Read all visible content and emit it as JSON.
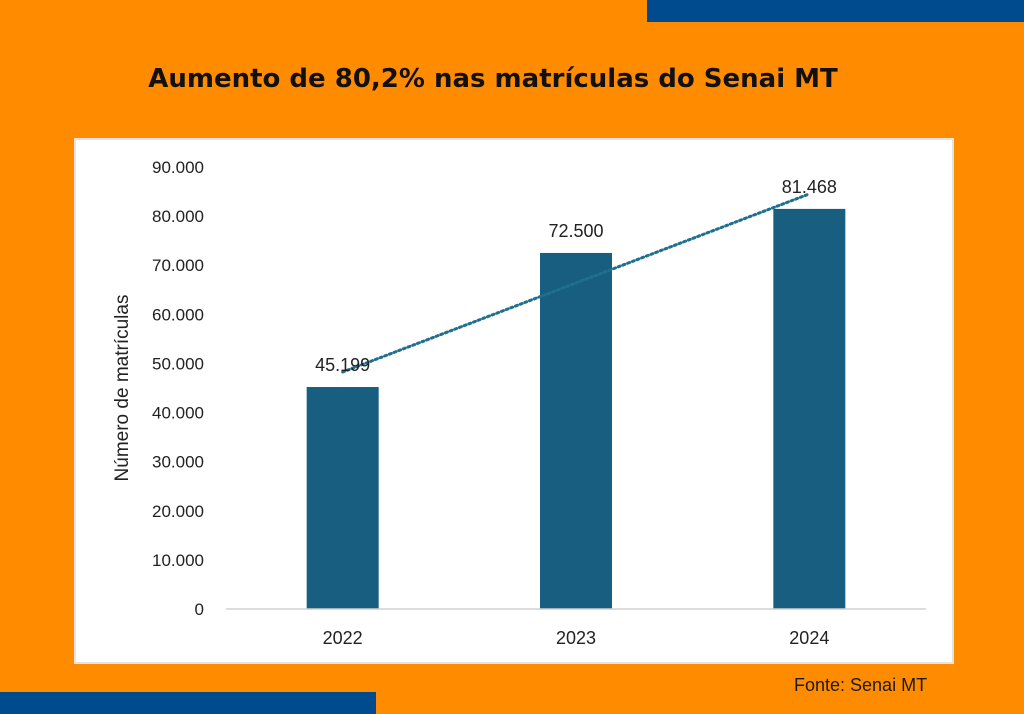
{
  "title": "Aumento de 80,2% nas matrículas do Senai MT",
  "source": "Fonte: Senai MT",
  "colors": {
    "background": "#FF8C00",
    "band": "#004B8D",
    "bar": "#185E80",
    "trendline": "#1F6F8F"
  },
  "chart_data": {
    "type": "bar",
    "title": "",
    "xlabel": "",
    "ylabel": "Número de matrículas",
    "categories": [
      "2022",
      "2023",
      "2024"
    ],
    "values": [
      45199,
      72500,
      81468
    ],
    "data_labels": [
      "45.199",
      "72.500",
      "81.468"
    ],
    "ylim": [
      0,
      90000
    ],
    "yticks": [
      0,
      10000,
      20000,
      30000,
      40000,
      50000,
      60000,
      70000,
      80000,
      90000
    ],
    "ytick_labels": [
      "0",
      "10.000",
      "20.000",
      "30.000",
      "40.000",
      "50.000",
      "60.000",
      "70.000",
      "80.000",
      "90.000"
    ],
    "trendline": "linear, dotted",
    "grid": false,
    "legend": "none"
  }
}
